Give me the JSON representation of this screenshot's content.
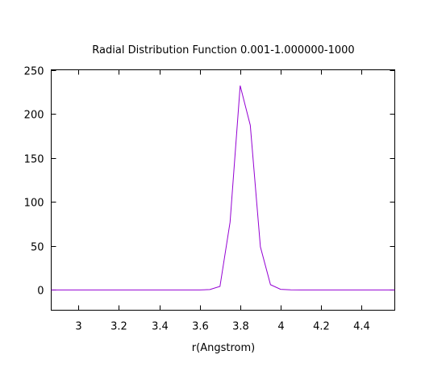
{
  "chart_data": {
    "type": "line",
    "title": "Radial Distribution Function 0.001-1.000000-1000",
    "xlabel": "r(Angstrom)",
    "ylabel": "",
    "xlim": [
      2.865,
      4.565
    ],
    "ylim": [
      -23,
      250
    ],
    "xticks": [
      3,
      3.2,
      3.4,
      3.6,
      3.8,
      4,
      4.2,
      4.4
    ],
    "xtick_labels": [
      "3",
      "3.2",
      "3.4",
      "3.6",
      "3.8",
      "4",
      "4.2",
      "4.4"
    ],
    "yticks": [
      0,
      50,
      100,
      150,
      200,
      250
    ],
    "ytick_labels": [
      "0",
      "50",
      "100",
      "150",
      "200",
      "250"
    ],
    "grid": false,
    "legend": "none",
    "series": [
      {
        "color": "#9400d3",
        "x": [
          2.865,
          3.0,
          3.2,
          3.4,
          3.6,
          3.65,
          3.7,
          3.75,
          3.8,
          3.85,
          3.9,
          3.95,
          4.0,
          4.05,
          4.1,
          4.2,
          4.4,
          4.565
        ],
        "y": [
          0,
          0,
          0,
          0,
          0,
          0.5,
          4,
          77,
          232,
          187,
          49,
          6,
          0.7,
          0.1,
          0,
          0,
          0,
          0
        ]
      }
    ]
  }
}
